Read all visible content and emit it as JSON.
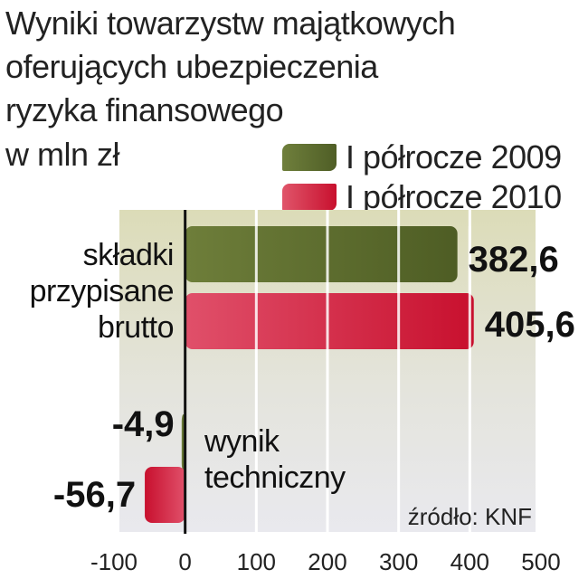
{
  "title": "Wyniki towarzystw majątkowych\noferujących ubezpieczenia\nryzyka finansowego",
  "unit": "w mln zł",
  "source": "źródło: KNF",
  "colors": {
    "series_2009": "#5b6b2e",
    "series_2010": "#d0283c",
    "plot_bg": "#dcdcb8",
    "plot_bg_lower": "#e8e8ee"
  },
  "chart_data": {
    "type": "bar",
    "orientation": "horizontal",
    "categories": [
      "składki przypisane brutto",
      "wynik techniczny"
    ],
    "series": [
      {
        "name": "I półrocze 2009",
        "values": [
          382.6,
          -4.9
        ]
      },
      {
        "name": "I półrocze 2010",
        "values": [
          405.6,
          -56.7
        ]
      }
    ],
    "data_labels": [
      [
        "382,6",
        "-4,9"
      ],
      [
        "405,6",
        "-56,7"
      ]
    ],
    "xlim": [
      -100,
      500
    ],
    "xticks": [
      -100,
      0,
      100,
      200,
      300,
      400,
      500
    ],
    "xtick_labels": [
      "-100",
      "0",
      "100",
      "200",
      "300",
      "400",
      "500"
    ],
    "grid": true
  }
}
